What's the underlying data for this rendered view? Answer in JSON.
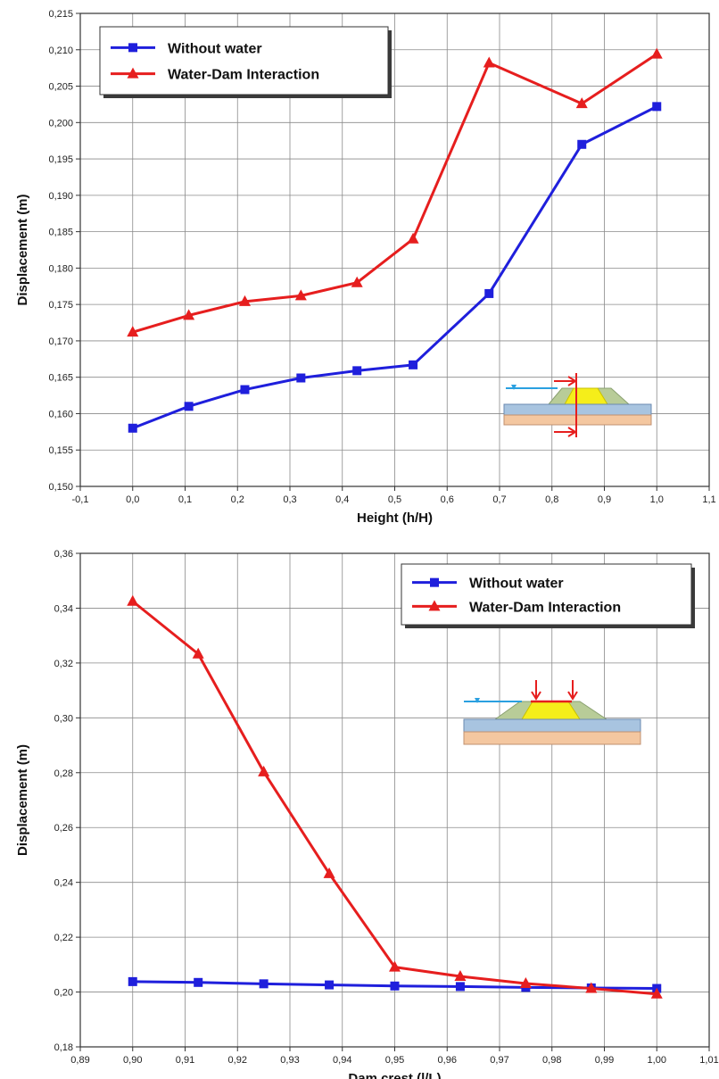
{
  "chart_data": [
    {
      "type": "line",
      "xlabel": "Height (h/H)",
      "ylabel": "Displacement (m)",
      "xlim": [
        -0.1,
        1.1
      ],
      "ylim": [
        0.15,
        0.215
      ],
      "xticks": [
        -0.1,
        0.0,
        0.1,
        0.2,
        0.3,
        0.4,
        0.5,
        0.6,
        0.7,
        0.8,
        0.9,
        1.0,
        1.1
      ],
      "xtick_labels": [
        "-0,1",
        "0,0",
        "0,1",
        "0,2",
        "0,3",
        "0,4",
        "0,5",
        "0,6",
        "0,7",
        "0,8",
        "0,9",
        "1,0",
        "1,1"
      ],
      "yticks": [
        0.15,
        0.155,
        0.16,
        0.165,
        0.17,
        0.175,
        0.18,
        0.185,
        0.19,
        0.195,
        0.2,
        0.205,
        0.21,
        0.215
      ],
      "ytick_labels": [
        "0,150",
        "0,155",
        "0,160",
        "0,165",
        "0,170",
        "0,175",
        "0,180",
        "0,185",
        "0,190",
        "0,195",
        "0,200",
        "0,205",
        "0,210",
        "0,215"
      ],
      "grid": true,
      "legend_position": "top-left",
      "inset": "dam-section-vertical",
      "series": [
        {
          "name": "Without water",
          "color": "#1f1fdc",
          "marker": "square",
          "x": [
            0.0,
            0.107,
            0.214,
            0.321,
            0.428,
            0.535,
            0.68,
            0.857,
            1.0
          ],
          "y": [
            0.158,
            0.161,
            0.1633,
            0.1649,
            0.1659,
            0.1667,
            0.1765,
            0.197,
            0.2022
          ]
        },
        {
          "name": "Water-Dam Interaction",
          "color": "#e61e1e",
          "marker": "triangle",
          "x": [
            0.0,
            0.107,
            0.214,
            0.321,
            0.428,
            0.535,
            0.68,
            0.857,
            1.0
          ],
          "y": [
            0.1712,
            0.1735,
            0.1754,
            0.1762,
            0.178,
            0.184,
            0.2082,
            0.2026,
            0.2094
          ]
        }
      ]
    },
    {
      "type": "line",
      "xlabel": "Dam crest (l/L)",
      "ylabel": "Displacement (m)",
      "xlim": [
        0.89,
        1.01
      ],
      "ylim": [
        0.18,
        0.36
      ],
      "xticks": [
        0.89,
        0.9,
        0.91,
        0.92,
        0.93,
        0.94,
        0.95,
        0.96,
        0.97,
        0.98,
        0.99,
        1.0,
        1.01
      ],
      "xtick_labels": [
        "0,89",
        "0,90",
        "0,91",
        "0,92",
        "0,93",
        "0,94",
        "0,95",
        "0,96",
        "0,97",
        "0,98",
        "0,99",
        "1,00",
        "1,01"
      ],
      "yticks": [
        0.18,
        0.2,
        0.22,
        0.24,
        0.26,
        0.28,
        0.3,
        0.32,
        0.34,
        0.36
      ],
      "ytick_labels": [
        "0,18",
        "0,20",
        "0,22",
        "0,24",
        "0,26",
        "0,28",
        "0,30",
        "0,32",
        "0,34",
        "0,36"
      ],
      "grid": true,
      "legend_position": "top-right",
      "inset": "dam-section-crest",
      "series": [
        {
          "name": "Without water",
          "color": "#1f1fdc",
          "marker": "square",
          "x": [
            0.9,
            0.9125,
            0.925,
            0.9375,
            0.95,
            0.9625,
            0.975,
            0.9875,
            1.0
          ],
          "y": [
            0.2038,
            0.2035,
            0.203,
            0.2026,
            0.2022,
            0.202,
            0.2017,
            0.2015,
            0.2013
          ]
        },
        {
          "name": "Water-Dam Interaction",
          "color": "#e61e1e",
          "marker": "triangle",
          "x": [
            0.9,
            0.9125,
            0.925,
            0.9375,
            0.95,
            0.9625,
            0.975,
            0.9875,
            1.0
          ],
          "y": [
            0.3425,
            0.3233,
            0.2803,
            0.2432,
            0.2091,
            0.2057,
            0.2031,
            0.2013,
            0.1993
          ]
        }
      ]
    }
  ]
}
